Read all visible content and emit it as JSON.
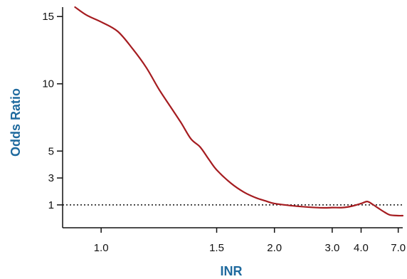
{
  "chart_data": {
    "type": "line",
    "title": "",
    "xlabel": "INR",
    "ylabel": "Odds Ratio",
    "x_scale": "reciprocal",
    "x_ticks": [
      "1.0",
      "1.5",
      "2.0",
      "3.0",
      "4.0",
      "7.0"
    ],
    "y_ticks": [
      "1",
      "3",
      "5",
      "10",
      "15"
    ],
    "xlim": [
      0.9,
      7.7
    ],
    "ylim": [
      -0.7,
      15.7
    ],
    "grid": false,
    "legend": "none",
    "reference_line": {
      "y": 1,
      "style": "dotted"
    },
    "series": [
      {
        "color": "#a51c20",
        "points": [
          [
            0.93,
            15.7
          ],
          [
            0.96,
            15.1
          ],
          [
            1.0,
            14.6
          ],
          [
            1.05,
            13.9
          ],
          [
            1.1,
            12.6
          ],
          [
            1.15,
            11.2
          ],
          [
            1.2,
            9.6
          ],
          [
            1.25,
            8.3
          ],
          [
            1.3,
            7.1
          ],
          [
            1.35,
            5.9
          ],
          [
            1.4,
            5.3
          ],
          [
            1.45,
            4.4
          ],
          [
            1.5,
            3.6
          ],
          [
            1.6,
            2.6
          ],
          [
            1.7,
            1.95
          ],
          [
            1.8,
            1.55
          ],
          [
            1.9,
            1.3
          ],
          [
            2.0,
            1.1
          ],
          [
            2.2,
            0.95
          ],
          [
            2.5,
            0.83
          ],
          [
            2.8,
            0.78
          ],
          [
            3.0,
            0.8
          ],
          [
            3.3,
            0.8
          ],
          [
            3.6,
            0.9
          ],
          [
            4.0,
            1.1
          ],
          [
            4.3,
            1.25
          ],
          [
            4.6,
            1.05
          ],
          [
            5.0,
            0.75
          ],
          [
            5.5,
            0.45
          ],
          [
            6.0,
            0.25
          ],
          [
            7.0,
            0.2
          ],
          [
            7.7,
            0.2
          ]
        ]
      }
    ],
    "colors": {
      "axis_title": "#1f6a9e",
      "axis": "#111111",
      "reference_line": "#111111"
    }
  }
}
